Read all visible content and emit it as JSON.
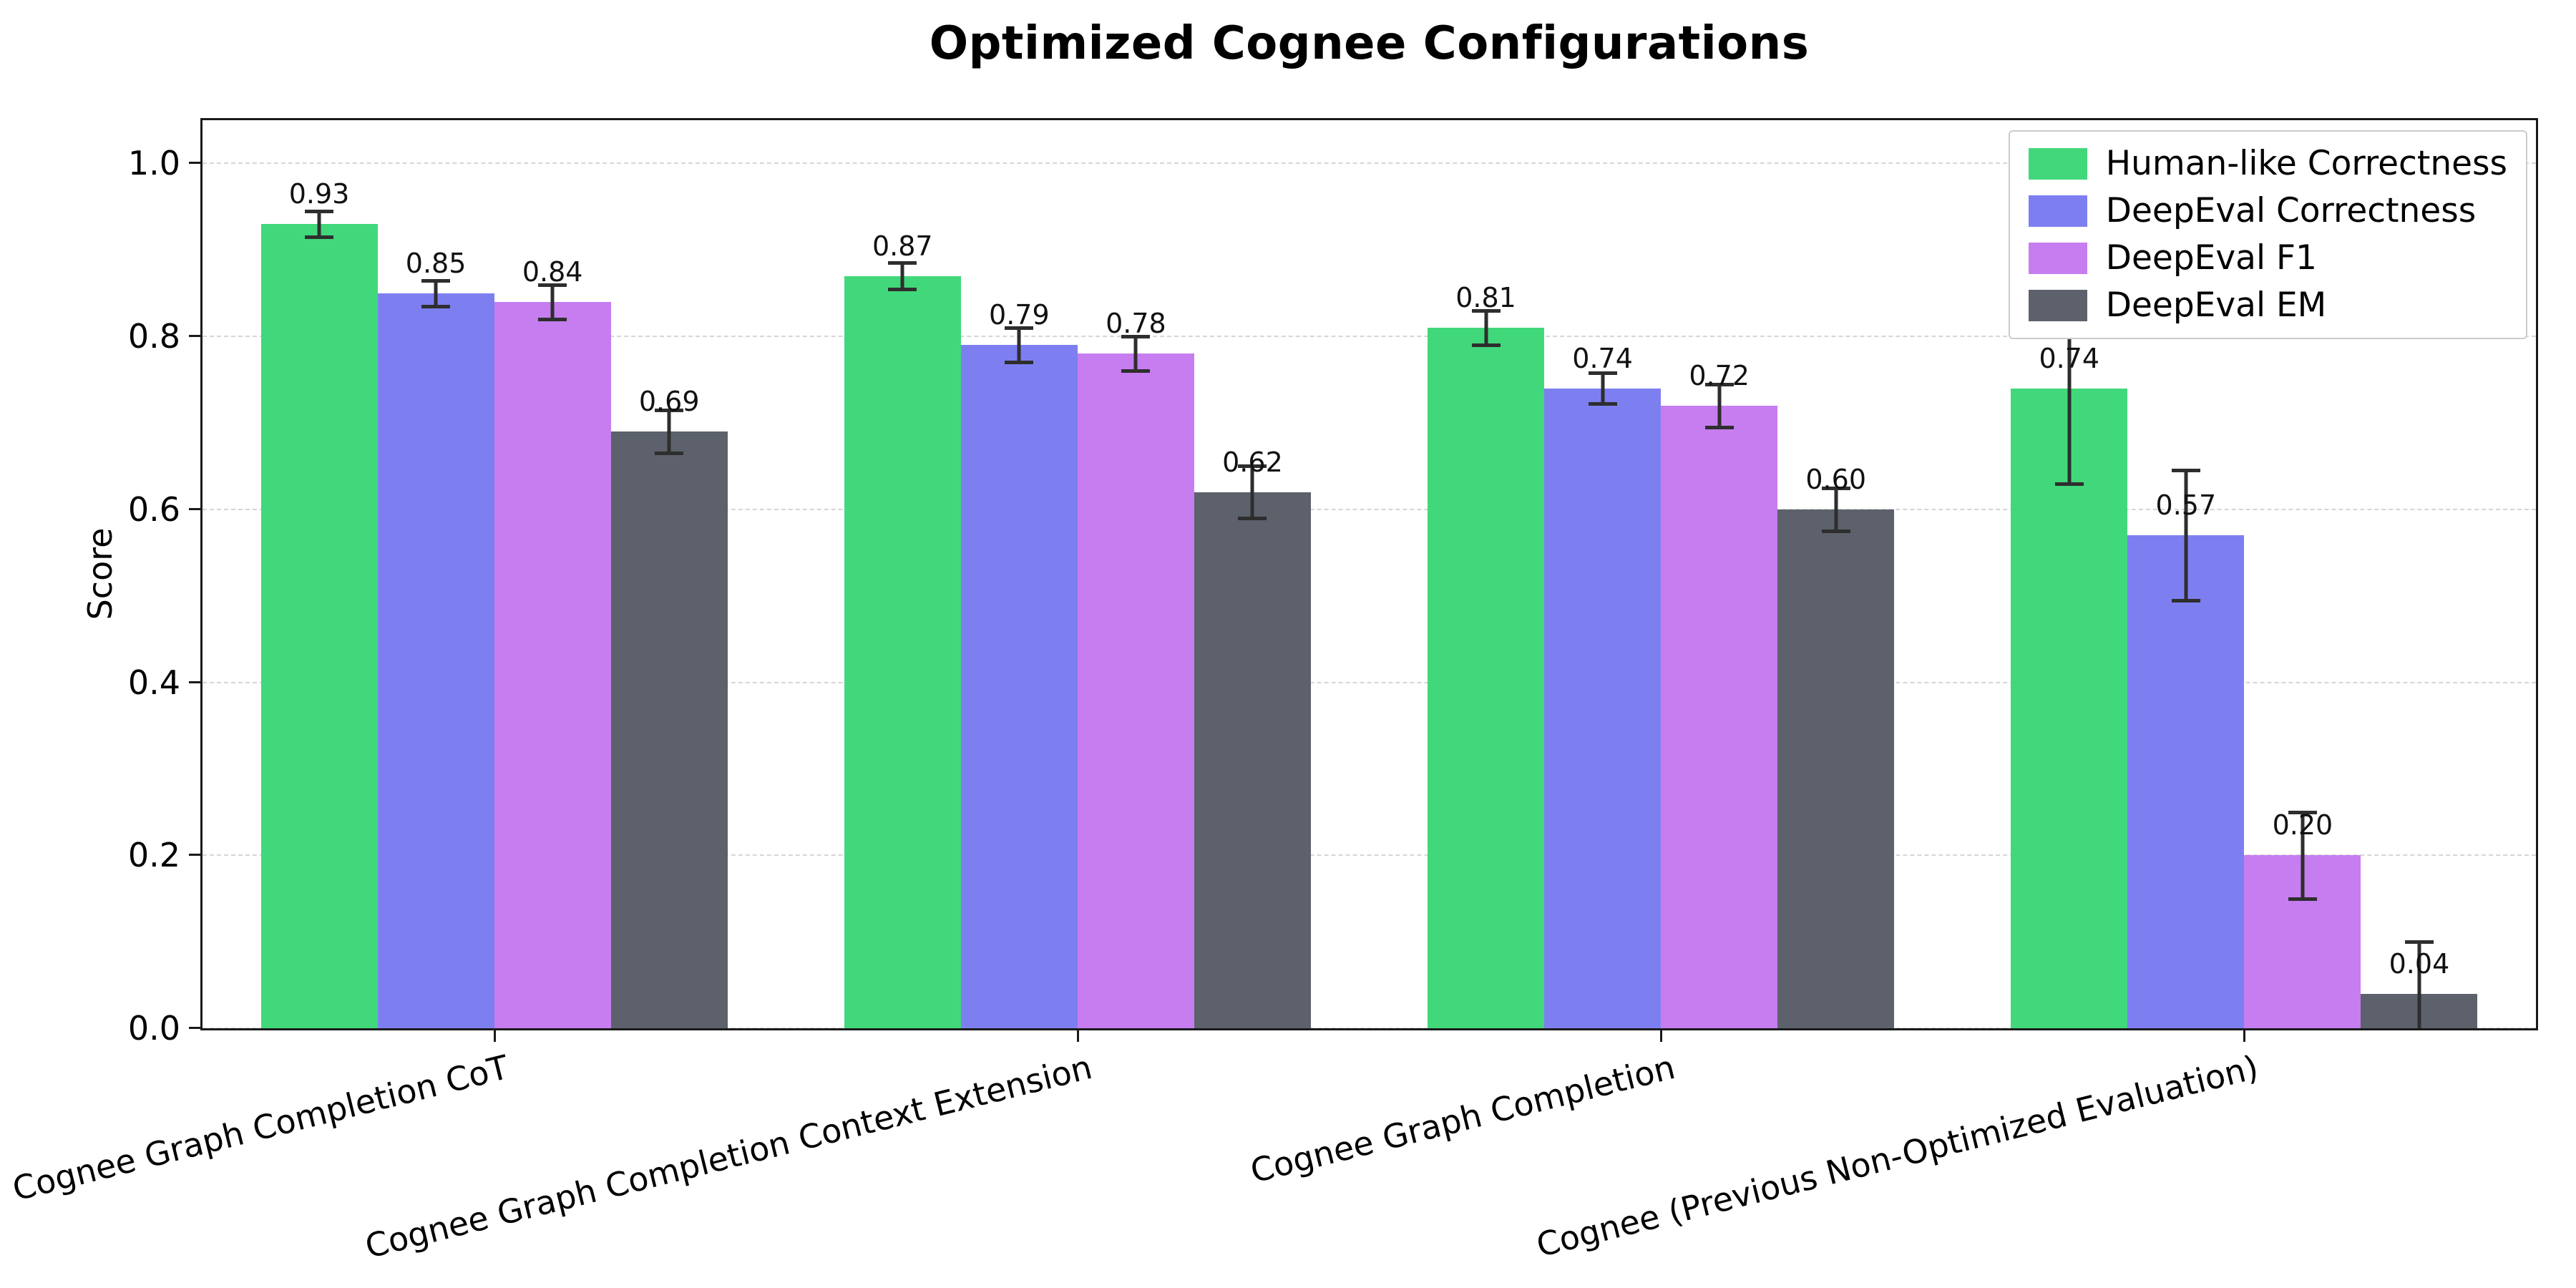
{
  "figure": {
    "title": "Optimized Cognee Configurations",
    "ylabel": "Score"
  },
  "chart_data": {
    "type": "bar",
    "title": "Optimized Cognee Configurations",
    "xlabel": "",
    "ylabel": "Score",
    "ylim": [
      0,
      1.05
    ],
    "yticks": [
      0.0,
      0.2,
      0.4,
      0.6,
      0.8,
      1.0
    ],
    "grid": "horizontal-dashed",
    "legend_position": "upper-right",
    "error_bars": true,
    "categories": [
      "Cognee Graph Completion CoT",
      "Cognee Graph Completion Context Extension",
      "Cognee Graph Completion",
      "Cognee (Previous Non-Optimized Evaluation)"
    ],
    "series": [
      {
        "name": "Human-like Correctness",
        "color": "#41d87c",
        "values": [
          0.93,
          0.87,
          0.81,
          0.74
        ],
        "errors": [
          0.015,
          0.015,
          0.02,
          0.11
        ]
      },
      {
        "name": "DeepEval Correctness",
        "color": "#7d7ff1",
        "values": [
          0.85,
          0.79,
          0.74,
          0.57
        ],
        "errors": [
          0.015,
          0.02,
          0.018,
          0.075
        ]
      },
      {
        "name": "DeepEval F1",
        "color": "#c67df0",
        "values": [
          0.84,
          0.78,
          0.72,
          0.2
        ],
        "errors": [
          0.02,
          0.02,
          0.025,
          0.05
        ]
      },
      {
        "name": "DeepEval EM",
        "color": "#5c616b",
        "values": [
          0.69,
          0.62,
          0.6,
          0.04
        ],
        "errors": [
          0.025,
          0.03,
          0.025,
          0.06
        ]
      }
    ]
  }
}
